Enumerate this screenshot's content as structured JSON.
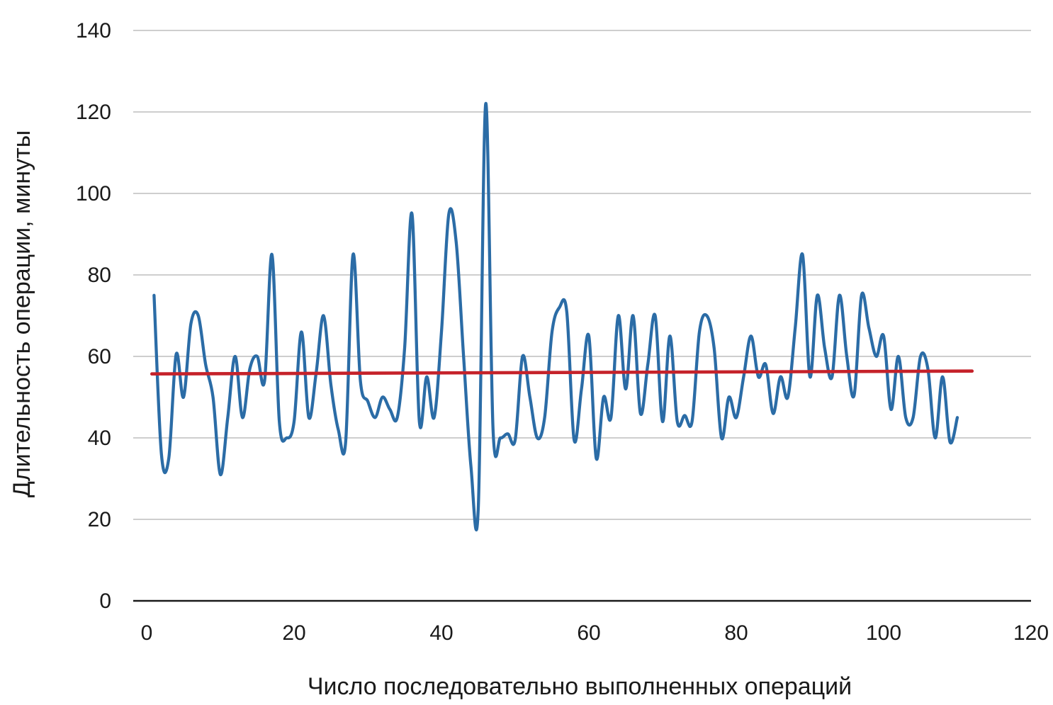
{
  "chart_data": {
    "type": "line",
    "title": "",
    "xlabel": "Число последовательно выполненных операций",
    "ylabel": "Длительность операции, минуты",
    "xlim": [
      0,
      120
    ],
    "ylim": [
      0,
      140
    ],
    "x_ticks": [
      0,
      20,
      40,
      60,
      80,
      100,
      120
    ],
    "y_ticks": [
      0,
      20,
      40,
      60,
      80,
      100,
      120,
      140
    ],
    "grid": "horizontal-only",
    "legend": "none",
    "series": [
      {
        "name": "operation-duration",
        "style": "smooth",
        "color": "#2B6CA6",
        "x_start": 1,
        "x_step": 1,
        "values": [
          75,
          36,
          35,
          60.5,
          50,
          68,
          70,
          58,
          50,
          31,
          45,
          60,
          45,
          57,
          60,
          54,
          85,
          44,
          40,
          44,
          66,
          45,
          56,
          70,
          53,
          42,
          39,
          85,
          54,
          49,
          45,
          50,
          47,
          45,
          62,
          95,
          44,
          55,
          45,
          66,
          95,
          88,
          60,
          33,
          23,
          122,
          42,
          40,
          41,
          39.5,
          60,
          50,
          40,
          45,
          66,
          72,
          71,
          39.5,
          52,
          65,
          35,
          50,
          45,
          70,
          52,
          70,
          46,
          58,
          70,
          44,
          65,
          44,
          45.5,
          44,
          66,
          70,
          62,
          40,
          50,
          45,
          55,
          65,
          55,
          58,
          46,
          55,
          50,
          67,
          85,
          55,
          75,
          62,
          55,
          75,
          60,
          50.5,
          75,
          67,
          60,
          65,
          47,
          60,
          45,
          45,
          60,
          57,
          40,
          55,
          39,
          45
        ]
      },
      {
        "name": "trend-line",
        "style": "straight",
        "color": "#C5222A",
        "points": [
          [
            0.7,
            55.7
          ],
          [
            112,
            56.4
          ]
        ]
      }
    ]
  },
  "colors": {
    "background": "#ffffff",
    "gridline": "#BEBEBE",
    "axis_line": "#1a1a1a",
    "text": "#1a1a1a",
    "series_main": "#2B6CA6",
    "series_trend": "#C5222A"
  }
}
